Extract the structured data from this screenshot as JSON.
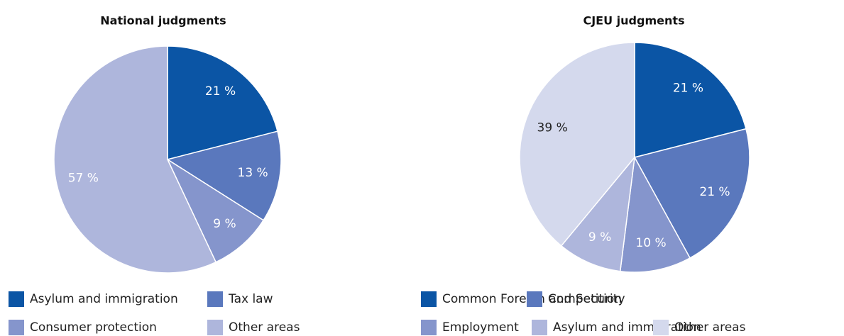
{
  "chart_data": [
    {
      "type": "pie",
      "title": "National judgments",
      "categories": [
        "Asylum and immigration",
        "Tax law",
        "Consumer protection",
        "Other areas"
      ],
      "values": [
        21,
        13,
        9,
        57
      ],
      "value_labels": [
        "21 %",
        "13 %",
        "9 %",
        "57 %"
      ],
      "colors": [
        "#0b55a5",
        "#5a78bd",
        "#8595cc",
        "#aeb6dc"
      ]
    },
    {
      "type": "pie",
      "title": "CJEU judgments",
      "categories": [
        "Common Foreign and Security",
        "Competition",
        "Employment",
        "Asylum and immigration",
        "Other areas"
      ],
      "values": [
        21,
        21,
        10,
        9,
        39
      ],
      "value_labels": [
        "21 %",
        "21 %",
        "10 %",
        "9 %",
        "39 %"
      ],
      "colors": [
        "#0b55a5",
        "#5a78bd",
        "#8595cc",
        "#aeb6dc",
        "#d4d9ed"
      ]
    }
  ]
}
